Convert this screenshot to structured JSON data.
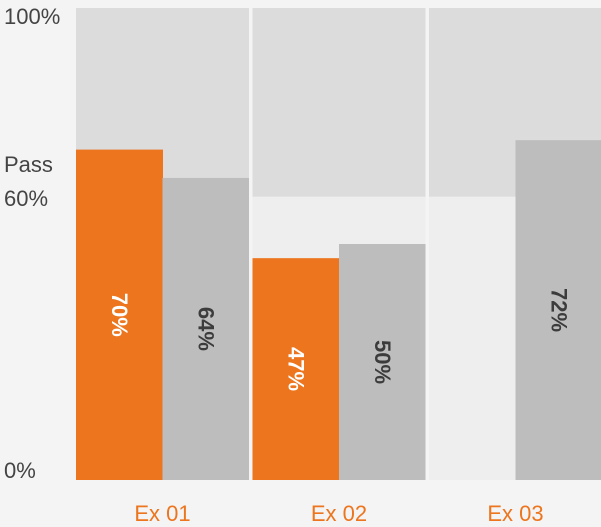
{
  "chart_data": {
    "type": "bar",
    "categories": [
      "Ex 01",
      "Ex 02",
      "Ex 03"
    ],
    "series": [
      {
        "values": [
          70,
          47,
          null
        ],
        "labels": [
          "70%",
          "47%",
          ""
        ]
      },
      {
        "values": [
          64,
          50,
          72
        ],
        "labels": [
          "64%",
          "50%",
          "72%"
        ]
      }
    ],
    "pass_level": 60,
    "ylim": [
      0,
      100
    ],
    "y_tick_labels": [
      {
        "value": 100,
        "label": "100%"
      },
      {
        "value": 60,
        "label": "60%"
      },
      {
        "value": 0,
        "label": "0%"
      }
    ],
    "pass_label": "Pass",
    "grid": false,
    "colors": {
      "series_1": "#ec751e",
      "series_2": "#bdbdbd",
      "panel_upper": "#dcdcdc",
      "panel_lower": "#eeeeee",
      "background": "#f4f4f4",
      "x_label": "#ec751e",
      "label_on_series_1": "#ffffff",
      "label_on_series_2": "#3c3c3c",
      "axis_text": "#444444"
    }
  }
}
